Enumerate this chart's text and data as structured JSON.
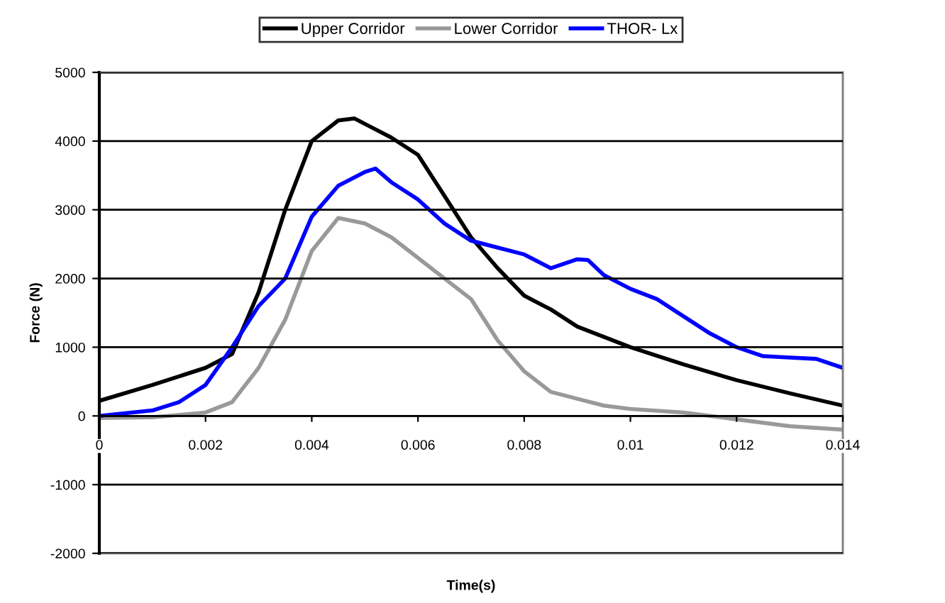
{
  "chart_data": {
    "type": "line",
    "xlabel": "Time(s)",
    "ylabel": "Force (N)",
    "xlim": [
      0,
      0.014
    ],
    "ylim": [
      -2000,
      5000
    ],
    "xticks": [
      0,
      0.002,
      0.004,
      0.006,
      0.008,
      0.01,
      0.012,
      0.014
    ],
    "yticks": [
      -2000,
      -1000,
      0,
      1000,
      2000,
      3000,
      4000,
      5000
    ],
    "grid": "y",
    "legend": "top",
    "marker": "none",
    "line_style": "solid",
    "series": [
      {
        "name": "Upper Corridor",
        "color": "#000000",
        "x": [
          0,
          0.001,
          0.002,
          0.0025,
          0.003,
          0.0035,
          0.004,
          0.0045,
          0.0048,
          0.005,
          0.0055,
          0.006,
          0.0065,
          0.007,
          0.0075,
          0.008,
          0.0085,
          0.009,
          0.0095,
          0.01,
          0.011,
          0.012,
          0.013,
          0.014
        ],
        "values": [
          220,
          450,
          700,
          900,
          1800,
          3000,
          4000,
          4300,
          4330,
          4250,
          4050,
          3800,
          3200,
          2600,
          2150,
          1750,
          1550,
          1300,
          1150,
          1000,
          750,
          520,
          330,
          150
        ]
      },
      {
        "name": "Lower Corridor",
        "color": "#999999",
        "x": [
          0,
          0.001,
          0.002,
          0.0025,
          0.003,
          0.0035,
          0.004,
          0.0045,
          0.005,
          0.0055,
          0.006,
          0.0065,
          0.007,
          0.0075,
          0.008,
          0.0085,
          0.009,
          0.0095,
          0.01,
          0.011,
          0.0115,
          0.012,
          0.013,
          0.014
        ],
        "values": [
          -30,
          -20,
          50,
          200,
          700,
          1400,
          2400,
          2880,
          2800,
          2600,
          2300,
          2000,
          1700,
          1100,
          650,
          350,
          250,
          150,
          100,
          50,
          0,
          -50,
          -150,
          -200
        ]
      },
      {
        "name": "THOR- Lx",
        "color": "#0000ff",
        "x": [
          0,
          0.001,
          0.0015,
          0.002,
          0.0025,
          0.003,
          0.0035,
          0.004,
          0.0045,
          0.005,
          0.0052,
          0.0055,
          0.006,
          0.0065,
          0.007,
          0.0075,
          0.008,
          0.0085,
          0.009,
          0.0092,
          0.0095,
          0.01,
          0.0105,
          0.011,
          0.0115,
          0.012,
          0.0125,
          0.013,
          0.0135,
          0.014
        ],
        "values": [
          0,
          80,
          200,
          450,
          1000,
          1600,
          2000,
          2900,
          3350,
          3550,
          3600,
          3400,
          3150,
          2800,
          2550,
          2450,
          2350,
          2150,
          2280,
          2270,
          2050,
          1850,
          1700,
          1450,
          1200,
          1000,
          870,
          850,
          830,
          700
        ]
      }
    ]
  }
}
